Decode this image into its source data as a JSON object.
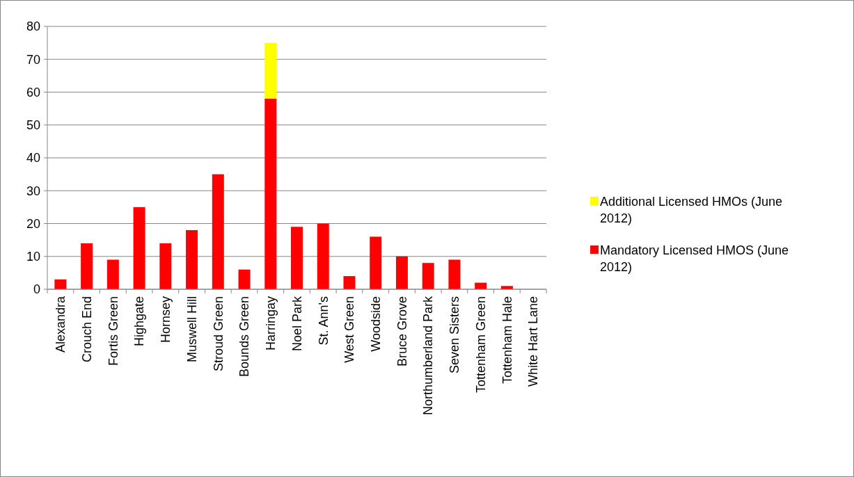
{
  "chart_data": {
    "type": "bar",
    "stacked": true,
    "categories": [
      "Alexandra",
      "Crouch End",
      "Fortis Green",
      "Highgate",
      "Hornsey",
      "Muswell Hill",
      "Stroud Green",
      "Bounds Green",
      "Harringay",
      "Noel Park",
      "St. Ann's",
      "West Green",
      "Woodside",
      "Bruce Grove",
      "Northumberland Park",
      "Seven Sisters",
      "Tottenham Green",
      "Tottenham Hale",
      "White Hart Lane"
    ],
    "series": [
      {
        "name": "Mandatory Licensed HMOS (June 2012)",
        "color": "#ff0000",
        "values": [
          3,
          14,
          9,
          25,
          14,
          18,
          35,
          6,
          58,
          19,
          20,
          4,
          16,
          10,
          8,
          9,
          2,
          1,
          0
        ]
      },
      {
        "name": "Additional Licensed HMOs (June 2012)",
        "color": "#ffff00",
        "values": [
          null,
          null,
          null,
          null,
          null,
          null,
          null,
          null,
          17,
          null,
          null,
          null,
          null,
          null,
          null,
          null,
          null,
          null,
          null
        ]
      }
    ],
    "ylim": [
      0,
      80
    ],
    "yticks": [
      0,
      10,
      20,
      30,
      40,
      50,
      60,
      70,
      80
    ],
    "grid": "y",
    "legend": "right"
  }
}
